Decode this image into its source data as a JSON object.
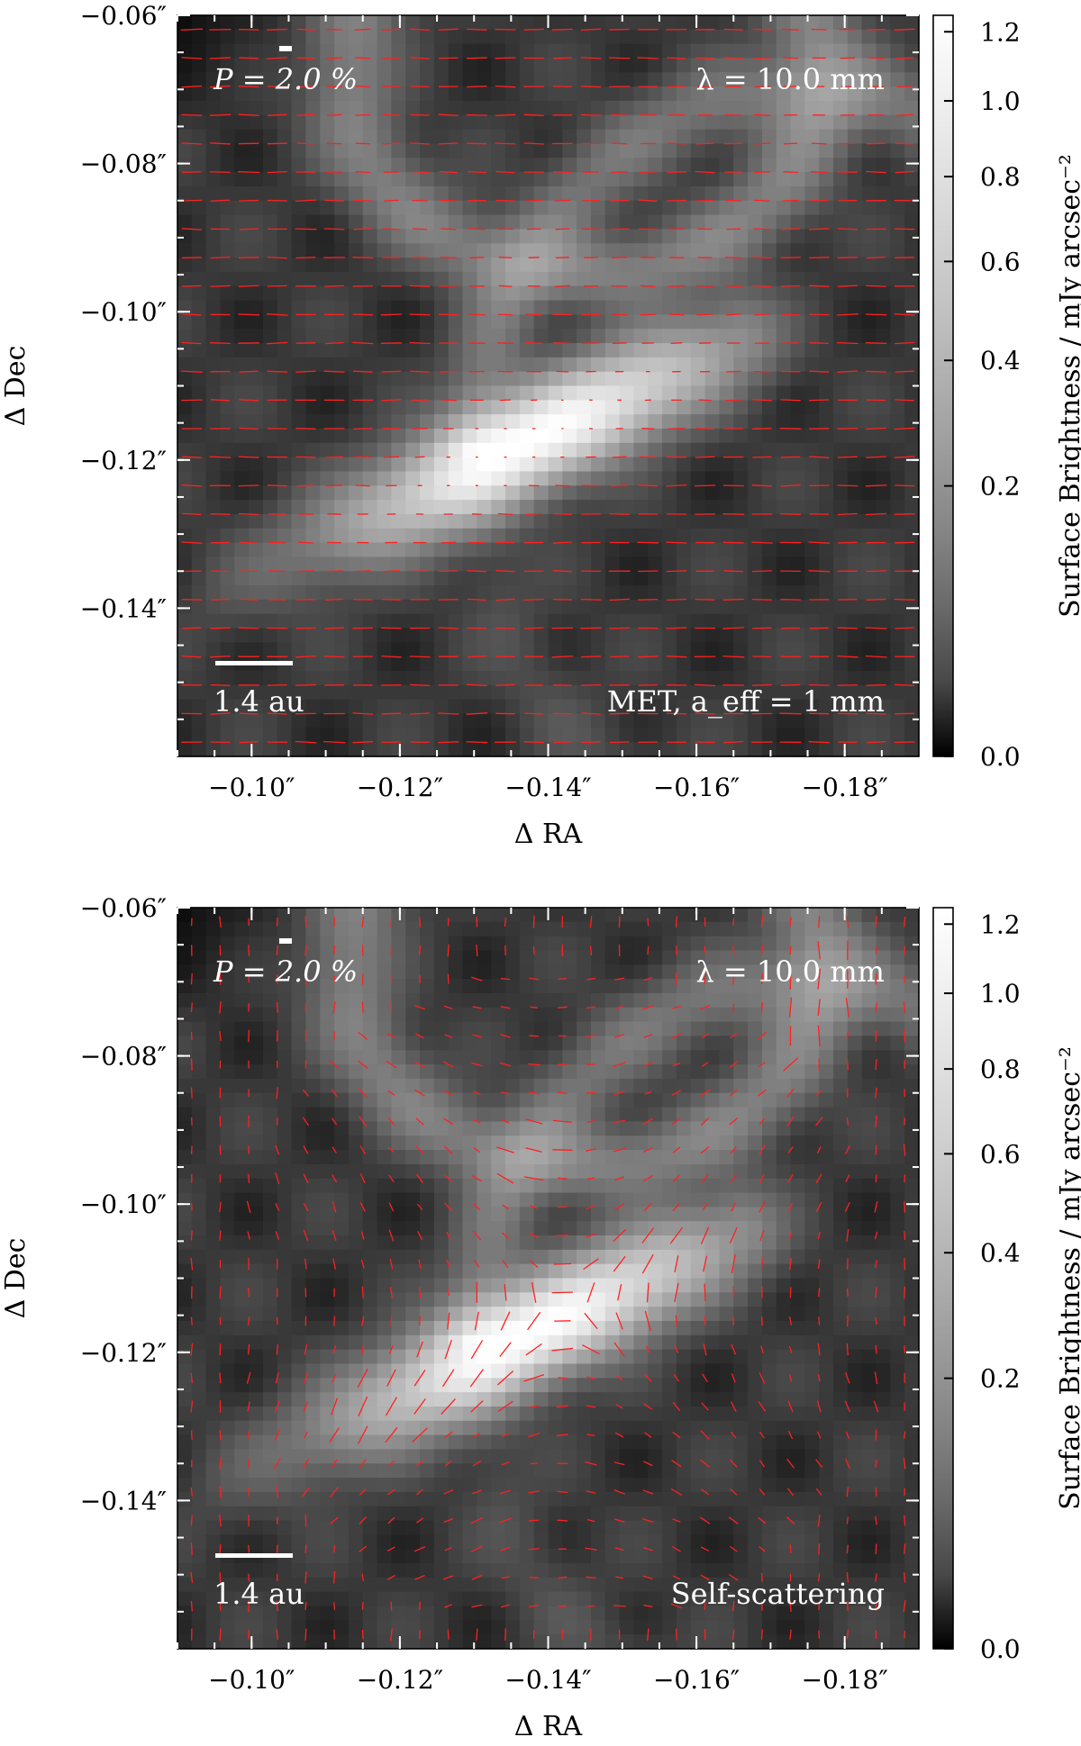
{
  "chart_data": [
    {
      "type": "heatmap",
      "subtype": "polarization-vector-map",
      "xlabel": "Δ RA",
      "ylabel": "Δ Dec",
      "xlim": [
        -0.09,
        -0.19
      ],
      "ylim": [
        -0.16,
        -0.06
      ],
      "x_ticks": [
        "−0.10″",
        "−0.12″",
        "−0.14″",
        "−0.16″",
        "−0.18″"
      ],
      "x_tick_values": [
        -0.1,
        -0.12,
        -0.14,
        -0.16,
        -0.18
      ],
      "y_ticks": [
        "−0.06″",
        "−0.08″",
        "−0.10″",
        "−0.12″",
        "−0.14″"
      ],
      "y_tick_values": [
        -0.06,
        -0.08,
        -0.1,
        -0.12,
        -0.14
      ],
      "colorbar_label": "Surface Brightness / mJy arcsec⁻²",
      "colorbar_ticks": [
        "0.0",
        "0.2",
        "0.4",
        "0.6",
        "0.8",
        "1.0",
        "1.2"
      ],
      "colorbar_tick_values": [
        0.0,
        0.2,
        0.4,
        0.6,
        0.8,
        1.0,
        1.2
      ],
      "colorbar_range": [
        0.0,
        1.25
      ],
      "colormap": "grayscale",
      "vector_color": "#ff2020",
      "annotations": {
        "polarization_scale": "P = 2.0 %",
        "wavelength": "λ = 10.0 mm",
        "scale_bar": "1.4 au",
        "model": "MET, a_eff = 1 mm"
      },
      "vector_pattern": "horizontal"
    },
    {
      "type": "heatmap",
      "subtype": "polarization-vector-map",
      "xlabel": "Δ RA",
      "ylabel": "Δ Dec",
      "xlim": [
        -0.09,
        -0.19
      ],
      "ylim": [
        -0.16,
        -0.06
      ],
      "x_ticks": [
        "−0.10″",
        "−0.12″",
        "−0.14″",
        "−0.16″",
        "−0.18″"
      ],
      "x_tick_values": [
        -0.1,
        -0.12,
        -0.14,
        -0.16,
        -0.18
      ],
      "y_ticks": [
        "−0.06″",
        "−0.08″",
        "−0.10″",
        "−0.12″",
        "−0.14″"
      ],
      "y_tick_values": [
        -0.06,
        -0.08,
        -0.1,
        -0.12,
        -0.14
      ],
      "colorbar_label": "Surface Brightness / mJy arcsec⁻²",
      "colorbar_ticks": [
        "0.0",
        "0.2",
        "0.4",
        "0.6",
        "0.8",
        "1.0",
        "1.2"
      ],
      "colorbar_tick_values": [
        0.0,
        0.2,
        0.4,
        0.6,
        0.8,
        1.0,
        1.2
      ],
      "colorbar_range": [
        0.0,
        1.25
      ],
      "colormap": "grayscale",
      "vector_color": "#ff2020",
      "annotations": {
        "polarization_scale": "P = 2.0 %",
        "wavelength": "λ = 10.0 mm",
        "scale_bar": "1.4 au",
        "model": "Self-scattering"
      },
      "vector_pattern": "azimuthal"
    }
  ]
}
